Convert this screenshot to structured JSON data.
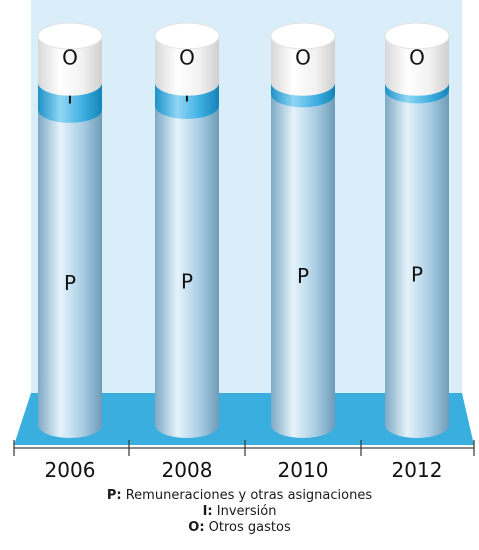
{
  "chart_data": {
    "type": "bar",
    "style": "stacked 3D cylinders, values as share of total",
    "categories": [
      "2006",
      "2008",
      "2010",
      "2012"
    ],
    "series": [
      {
        "key": "P",
        "name": "Remuneraciones y otras asignaciones",
        "values": [
          0.81,
          0.82,
          0.85,
          0.86
        ],
        "color": "#a9cfe6"
      },
      {
        "key": "I",
        "name": "Inversión",
        "values": [
          0.07,
          0.06,
          0.03,
          0.02
        ],
        "color": "#3fb0e2"
      },
      {
        "key": "O",
        "name": "Otros gastos",
        "values": [
          0.12,
          0.12,
          0.12,
          0.12
        ],
        "color": "#f4f4f4"
      }
    ],
    "background_color": "#d9eef9",
    "floor_color": "#3aaedf",
    "legend_position": "bottom"
  },
  "legend": [
    {
      "key_text": "P:",
      "label": "Remuneraciones y otras asignaciones"
    },
    {
      "key_text": "I:",
      "label": "Inversión"
    },
    {
      "key_text": "O:",
      "label": "Otros gastos"
    }
  ]
}
